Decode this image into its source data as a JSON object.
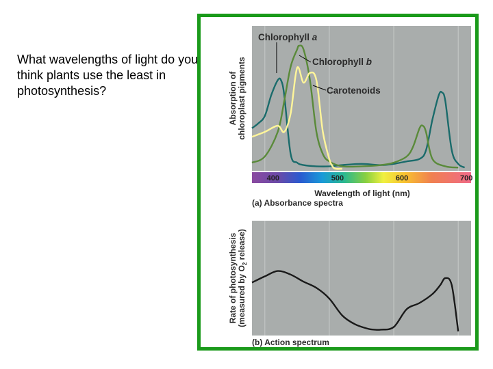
{
  "slide": {
    "question": "What wavelengths of light do you think plants use the least in photosynthesis?"
  },
  "colors": {
    "frame": "#1a9a1a",
    "plot_bg": "#a9adac",
    "chlorophyll_a": "#1a6b6b",
    "chlorophyll_b": "#5a8a3a",
    "carotenoids": "#fff59a",
    "action": "#1a1a1a"
  },
  "chart_data": [
    {
      "type": "line",
      "caption": "(a) Absorbance spectra",
      "ylabel_line1": "Absorption of",
      "ylabel_line2": "chloroplast pigments",
      "xlabel": "Wavelength of light (nm)",
      "x_ticks": [
        "400",
        "500",
        "600",
        "700"
      ],
      "xlim": [
        380,
        720
      ],
      "grid": true,
      "series": [
        {
          "name": "Chlorophyll a",
          "name_base": "Chlorophyll ",
          "name_italic": "a",
          "x": [
            380,
            390,
            400,
            410,
            420,
            425,
            430,
            440,
            450,
            460,
            480,
            500,
            520,
            550,
            580,
            600,
            620,
            640,
            650,
            660,
            670,
            675,
            680,
            690,
            700,
            710
          ],
          "y": [
            0.33,
            0.37,
            0.43,
            0.6,
            0.72,
            0.72,
            0.6,
            0.12,
            0.05,
            0.03,
            0.02,
            0.02,
            0.03,
            0.04,
            0.03,
            0.04,
            0.06,
            0.08,
            0.15,
            0.4,
            0.6,
            0.62,
            0.55,
            0.15,
            0.04,
            0.01
          ]
        },
        {
          "name": "Chlorophyll b",
          "name_base": "Chlorophyll ",
          "name_italic": "b",
          "x": [
            380,
            400,
            420,
            430,
            440,
            450,
            453,
            460,
            470,
            480,
            490,
            500,
            520,
            550,
            580,
            600,
            620,
            630,
            640,
            645,
            650,
            660,
            680,
            700
          ],
          "y": [
            0.05,
            0.1,
            0.3,
            0.55,
            0.83,
            0.97,
            1.0,
            0.97,
            0.72,
            0.3,
            0.12,
            0.06,
            0.02,
            0.02,
            0.03,
            0.05,
            0.1,
            0.18,
            0.33,
            0.35,
            0.3,
            0.08,
            0.02,
            0.01
          ]
        },
        {
          "name": "Carotenoids",
          "x": [
            380,
            400,
            420,
            430,
            440,
            450,
            460,
            470,
            480,
            490,
            500,
            505,
            510,
            520
          ],
          "y": [
            0.26,
            0.3,
            0.35,
            0.3,
            0.45,
            0.82,
            0.7,
            0.78,
            0.72,
            0.3,
            0.08,
            0.02,
            0.0,
            0.0
          ]
        }
      ]
    },
    {
      "type": "line",
      "caption": "(b) Action spectrum",
      "ylabel_line1": "Rate of photosynthesis",
      "ylabel_line2_pre": "(measured by O",
      "ylabel_line2_sub": "2",
      "ylabel_line2_post": " release)",
      "xlim": [
        380,
        720
      ],
      "grid": true,
      "series": [
        {
          "name": "Action spectrum",
          "x": [
            380,
            400,
            420,
            440,
            460,
            480,
            500,
            520,
            540,
            560,
            570,
            580,
            600,
            620,
            640,
            660,
            672,
            680,
            690,
            700
          ],
          "y": [
            0.55,
            0.62,
            0.68,
            0.64,
            0.56,
            0.49,
            0.37,
            0.18,
            0.08,
            0.03,
            0.02,
            0.02,
            0.05,
            0.25,
            0.32,
            0.42,
            0.52,
            0.6,
            0.52,
            0.0
          ]
        }
      ]
    }
  ]
}
